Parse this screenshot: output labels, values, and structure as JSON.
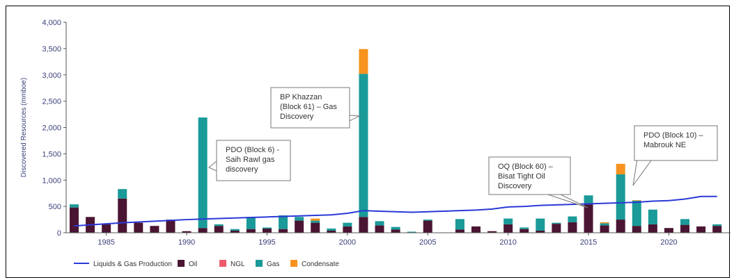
{
  "chart_data": {
    "type": "bar",
    "stacked": true,
    "ylabel": "Discovered Resources (mmboe)",
    "ylim": [
      0,
      4000
    ],
    "yticks": [
      "0",
      "500",
      "1,000",
      "1,500",
      "2,000",
      "2,500",
      "3,000",
      "3,500",
      "4,000"
    ],
    "xticks": [
      "1985",
      "1990",
      "1995",
      "2000",
      "2005",
      "2010",
      "2015",
      "2020"
    ],
    "years": [
      1983,
      1984,
      1985,
      1986,
      1987,
      1988,
      1989,
      1990,
      1991,
      1992,
      1993,
      1994,
      1995,
      1996,
      1997,
      1998,
      1999,
      2000,
      2001,
      2002,
      2003,
      2004,
      2005,
      2006,
      2007,
      2008,
      2009,
      2010,
      2011,
      2012,
      2013,
      2014,
      2015,
      2016,
      2017,
      2018,
      2019,
      2020,
      2021,
      2022,
      2023
    ],
    "series": [
      {
        "name": "Oil",
        "color": "#4a1532",
        "values": [
          480,
          300,
          160,
          650,
          190,
          130,
          250,
          30,
          90,
          130,
          40,
          70,
          80,
          70,
          230,
          190,
          40,
          120,
          300,
          140,
          60,
          0,
          230,
          0,
          60,
          120,
          30,
          160,
          70,
          40,
          170,
          200,
          540,
          140,
          250,
          130,
          160,
          90,
          150,
          120,
          130
        ]
      },
      {
        "name": "NGL",
        "color": "#f05a6e",
        "values": [
          0,
          0,
          0,
          0,
          0,
          0,
          0,
          0,
          0,
          0,
          0,
          0,
          0,
          0,
          0,
          0,
          0,
          0,
          0,
          0,
          0,
          0,
          0,
          0,
          0,
          0,
          0,
          0,
          0,
          0,
          0,
          0,
          0,
          0,
          0,
          0,
          0,
          0,
          0,
          0,
          0
        ]
      },
      {
        "name": "Gas",
        "color": "#1a9a98",
        "values": [
          60,
          0,
          0,
          180,
          0,
          0,
          0,
          0,
          2100,
          30,
          30,
          230,
          20,
          260,
          70,
          40,
          40,
          70,
          2720,
          80,
          50,
          20,
          20,
          0,
          200,
          0,
          0,
          110,
          30,
          230,
          20,
          110,
          170,
          40,
          860,
          480,
          280,
          0,
          110,
          0,
          30
        ]
      },
      {
        "name": "Condensate",
        "color": "#f7931e",
        "values": [
          0,
          0,
          0,
          0,
          0,
          0,
          0,
          0,
          0,
          0,
          0,
          0,
          0,
          0,
          0,
          40,
          0,
          0,
          470,
          0,
          0,
          0,
          0,
          0,
          0,
          0,
          0,
          0,
          0,
          0,
          0,
          0,
          0,
          20,
          200,
          10,
          0,
          0,
          0,
          0,
          0
        ]
      }
    ],
    "line": {
      "name": "Liquids & Gas Production",
      "color": "#2a39d6",
      "values": [
        130,
        150,
        170,
        190,
        205,
        220,
        235,
        250,
        260,
        270,
        280,
        290,
        300,
        310,
        320,
        330,
        340,
        370,
        420,
        410,
        400,
        390,
        400,
        410,
        420,
        430,
        450,
        490,
        500,
        520,
        530,
        540,
        550,
        560,
        570,
        580,
        600,
        610,
        640,
        690,
        690
      ]
    },
    "legend_position": "bottom",
    "annotations": [
      {
        "text": [
          "PDO (Block 6) -",
          "Saih Rawl gas",
          "discovery"
        ],
        "year": 1991,
        "value": 1900
      },
      {
        "text": [
          "BP Khazzan",
          "(Block 61) – Gas",
          "Discovery"
        ],
        "year": 2001,
        "value": 2200
      },
      {
        "text": [
          "OQ (Block 60) –",
          "Bisat Tight Oil",
          "Discovery"
        ],
        "year": 2015,
        "value": 550
      },
      {
        "text": [
          "PDO (Block 10) –",
          "Mabrouk NE"
        ],
        "year": 2017,
        "value": 1100
      }
    ]
  }
}
